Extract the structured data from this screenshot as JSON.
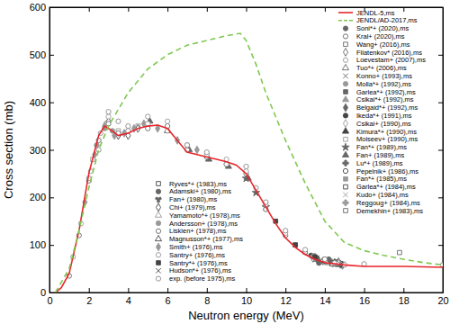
{
  "chart_data": {
    "type": "scatter",
    "xlabel": "Neutron energy (MeV)",
    "ylabel": "Cross section (mb)",
    "xlim": [
      0,
      20
    ],
    "ylim": [
      0,
      600
    ],
    "xticks": [
      0,
      2,
      4,
      6,
      8,
      10,
      12,
      14,
      16,
      18,
      20
    ],
    "yticks": [
      0,
      100,
      200,
      300,
      400,
      500,
      600
    ],
    "grid": false,
    "legend": "upper right",
    "series": [
      {
        "name": "JENDL-5,ms",
        "type": "line",
        "color": "#e8262b",
        "line_style": "solid",
        "x": [
          0.3,
          0.6,
          1,
          1.5,
          2,
          2.5,
          2.8,
          3,
          3.5,
          4,
          4.5,
          5,
          5.5,
          6,
          6.5,
          7,
          7.5,
          8,
          8.5,
          9,
          9.5,
          10,
          10.5,
          11,
          11.5,
          12,
          12.5,
          13,
          13.5,
          14,
          15,
          16,
          17,
          18,
          19,
          20
        ],
        "values": [
          0,
          10,
          40,
          130,
          250,
          330,
          350,
          345,
          330,
          335,
          345,
          350,
          352,
          345,
          320,
          295,
          290,
          285,
          280,
          275,
          268,
          250,
          215,
          180,
          145,
          115,
          95,
          80,
          70,
          63,
          58,
          55,
          55,
          55,
          54,
          53
        ]
      },
      {
        "name": "JENDL/AD-2017,ms",
        "type": "line",
        "color": "#7ec850",
        "line_style": "dashed",
        "x": [
          0.3,
          1,
          1.5,
          2,
          2.5,
          3,
          4,
          5,
          6,
          7,
          8,
          9,
          9.7,
          10,
          10.5,
          11,
          12,
          13,
          14,
          15,
          16,
          17,
          18,
          19,
          20
        ],
        "values": [
          0,
          50,
          130,
          220,
          300,
          350,
          420,
          470,
          500,
          520,
          530,
          540,
          545,
          530,
          480,
          420,
          320,
          230,
          150,
          105,
          88,
          78,
          70,
          63,
          58
        ]
      },
      {
        "name": "Soni*+ (2020),ms",
        "type": "scatter",
        "marker": "circle",
        "color": "#666666",
        "x": [
          13.7,
          14.3,
          14.8
        ],
        "values": [
          62,
          65,
          58
        ]
      },
      {
        "name": "Kral+ (2020),ms",
        "type": "scatter",
        "marker": "circle-open",
        "color": "#666666",
        "x": [
          13.9,
          14.6
        ],
        "values": [
          66,
          59
        ]
      },
      {
        "name": "Wang+ (2016),ms",
        "type": "scatter",
        "marker": "square-open",
        "color": "#666666",
        "x": [
          13.5,
          14.1,
          14.8
        ],
        "values": [
          70,
          63,
          60
        ]
      },
      {
        "name": "Filatenkov* (2016),ms",
        "type": "scatter",
        "marker": "diamond-open",
        "color": "#666666",
        "x": [
          13.4,
          13.9,
          14.4,
          14.9
        ],
        "values": [
          72,
          66,
          62,
          57
        ]
      },
      {
        "name": "Loevestam+ (2007),ms",
        "type": "scatter",
        "marker": "circle-open",
        "color": "#999999",
        "x": [
          1.2,
          1.6,
          2.1,
          2.6
        ],
        "values": [
          75,
          145,
          255,
          335
        ]
      },
      {
        "name": "Tuo*+ (2006),ms",
        "type": "scatter",
        "marker": "triangle-open",
        "color": "#666666",
        "x": [
          13.5,
          14.0,
          14.7
        ],
        "values": [
          75,
          65,
          62
        ]
      },
      {
        "name": "Konno+ (1993),ms",
        "type": "scatter",
        "marker": "times",
        "color": "#666666",
        "x": [
          13.6,
          14.2,
          14.9
        ],
        "values": [
          73,
          66,
          60
        ]
      },
      {
        "name": "Molla*+ (1992),ms",
        "type": "scatter",
        "marker": "circle",
        "color": "#999999",
        "x": [
          14.1,
          14.7
        ],
        "values": [
          68,
          62
        ]
      },
      {
        "name": "Garlea*+ (1992),ms",
        "type": "scatter",
        "marker": "square",
        "color": "#666666",
        "x": [
          14.6
        ],
        "values": [
          64
        ]
      },
      {
        "name": "Csikai*+ (1992),ms",
        "type": "scatter",
        "marker": "triangle",
        "color": "#999999",
        "x": [
          14.7
        ],
        "values": [
          66
        ]
      },
      {
        "name": "Belgaid*+ (1992),ms",
        "type": "scatter",
        "marker": "diamond",
        "color": "#666666",
        "x": [
          14.5,
          14.8
        ],
        "values": [
          63,
          59
        ]
      },
      {
        "name": "Ikeda*+ (1991),ms",
        "type": "scatter",
        "marker": "circle",
        "color": "#444444",
        "x": [
          13.3,
          13.6,
          14.1,
          14.6,
          14.9
        ],
        "values": [
          78,
          72,
          66,
          62,
          58
        ]
      },
      {
        "name": "Csikai+ (1990),ms",
        "type": "scatter",
        "marker": "diamond-open",
        "color": "#999999",
        "x": [
          14.4
        ],
        "values": [
          61
        ]
      },
      {
        "name": "Kimura*+ (1990),ms",
        "type": "scatter",
        "marker": "triangle",
        "color": "#444444",
        "x": [
          14.0,
          14.5
        ],
        "values": [
          67,
          62
        ]
      },
      {
        "name": "Moiseev+ (1990),ms",
        "type": "scatter",
        "marker": "square-open",
        "color": "#999999",
        "x": [
          2.2,
          2.9,
          3.5,
          4.5
        ],
        "values": [
          280,
          355,
          340,
          350
        ]
      },
      {
        "name": "Fan*+ (1989),ms",
        "type": "scatter",
        "marker": "star",
        "color": "#666666",
        "x": [
          10.0,
          10.5,
          11.0
        ],
        "values": [
          240,
          210,
          180
        ]
      },
      {
        "name": "Fan+ (1989),ms",
        "type": "scatter",
        "marker": "triangle",
        "color": "#666666",
        "x": [
          5.1,
          6.0,
          7.1,
          8.1,
          9.1,
          10.1
        ],
        "values": [
          360,
          340,
          300,
          280,
          265,
          240
        ]
      },
      {
        "name": "Lu*+ (1989),ms",
        "type": "scatter",
        "marker": "cross",
        "color": "#666666",
        "x": [
          13.6,
          14.3
        ],
        "values": [
          70,
          64
        ]
      },
      {
        "name": "Pepelnik+ (1986),ms",
        "type": "scatter",
        "marker": "circle-open",
        "color": "#444444",
        "x": [
          14.0,
          14.6
        ],
        "values": [
          70,
          63
        ]
      },
      {
        "name": "Fan*+ (1985),ms",
        "type": "scatter",
        "marker": "square",
        "color": "#999999",
        "x": [
          12.5,
          13.0
        ],
        "values": [
          100,
          85
        ]
      },
      {
        "name": "Garlea*+ (1984),ms",
        "type": "scatter",
        "marker": "square-open",
        "color": "#444444",
        "x": [
          14.8
        ],
        "values": [
          61
        ]
      },
      {
        "name": "Kudo+ (1984),ms",
        "type": "scatter",
        "marker": "times",
        "color": "#999999",
        "x": [
          14.2,
          14.7
        ],
        "values": [
          64,
          61
        ]
      },
      {
        "name": "Reggoug+ (1984),ms",
        "type": "scatter",
        "marker": "cross",
        "color": "#999999",
        "x": [
          13.4,
          14.1,
          14.7
        ],
        "values": [
          76,
          67,
          62
        ]
      },
      {
        "name": "Demekhin+ (1983),ms",
        "type": "scatter",
        "marker": "square-open",
        "color": "#666666",
        "x": [
          17.8
        ],
        "values": [
          84
        ]
      },
      {
        "name": "Ryves*+ (1983),ms",
        "type": "scatter",
        "marker": "square-open",
        "color": "#444444",
        "x": [
          14.1,
          14.7
        ],
        "values": [
          66,
          60
        ]
      },
      {
        "name": "Adamski+ (1980),ms",
        "type": "scatter",
        "marker": "circle",
        "color": "#666666",
        "x": [
          14.2
        ],
        "values": [
          70
        ]
      },
      {
        "name": "Fan+ (1980),ms",
        "type": "scatter",
        "marker": "wye",
        "color": "#666666",
        "x": [
          14.6
        ],
        "values": [
          65
        ]
      },
      {
        "name": "Chi+ (1979),ms",
        "type": "scatter",
        "marker": "diamond-open",
        "color": "#444444",
        "x": [
          3.0,
          3.5,
          4.0,
          4.5
        ],
        "values": [
          360,
          330,
          330,
          345
        ]
      },
      {
        "name": "Yamamoto*+ (1978),ms",
        "type": "scatter",
        "marker": "triangle-open",
        "color": "#999999",
        "x": [
          14.7
        ],
        "values": [
          62
        ]
      },
      {
        "name": "Andersson+ (1978),ms",
        "type": "scatter",
        "marker": "circle",
        "color": "#999999",
        "x": [
          2.4,
          2.8,
          3.2
        ],
        "values": [
          310,
          345,
          340
        ]
      },
      {
        "name": "Liskien+ (1978),ms",
        "type": "scatter",
        "marker": "circle-open",
        "color": "#666666",
        "x": [
          1.0,
          1.5,
          2.0,
          2.5,
          3.0,
          3.5,
          4.0,
          5.0,
          6.0,
          7.0,
          8.0,
          9.0,
          10.0,
          11.0,
          12.0,
          13.0
        ],
        "values": [
          35,
          120,
          235,
          320,
          355,
          335,
          340,
          345,
          350,
          300,
          285,
          270,
          250,
          175,
          120,
          85
        ]
      },
      {
        "name": "Magnusson*+ (1977),ms",
        "type": "scatter",
        "marker": "triangle-open",
        "color": "#444444",
        "x": [
          14.4
        ],
        "values": [
          60
        ]
      },
      {
        "name": "Smith+ (1976),ms",
        "type": "scatter",
        "marker": "diamond",
        "color": "#999999",
        "x": [
          1.8,
          2.3,
          2.8,
          3.3,
          3.8,
          4.3,
          4.8,
          5.5,
          6.5,
          7.5
        ],
        "values": [
          190,
          290,
          350,
          330,
          335,
          345,
          355,
          345,
          320,
          300
        ]
      },
      {
        "name": "Santry+ (1976),ms",
        "type": "scatter",
        "marker": "circle-open",
        "color": "#999999",
        "x": [
          3.0,
          4.0,
          5.0,
          6.0,
          7.0,
          8.0,
          9.0,
          10.0,
          11.0,
          12.0
        ],
        "values": [
          370,
          340,
          355,
          360,
          310,
          290,
          280,
          255,
          185,
          125
        ]
      },
      {
        "name": "Santry*+ (1976),ms",
        "type": "scatter",
        "marker": "square",
        "color": "#444444",
        "x": [
          11.5,
          12.5,
          13.5
        ],
        "values": [
          150,
          100,
          75
        ]
      },
      {
        "name": "Hudson*+ (1976),ms",
        "type": "scatter",
        "marker": "times",
        "color": "#444444",
        "x": [
          14.8
        ],
        "values": [
          60
        ]
      },
      {
        "name": "exp. (before 1975),ms",
        "type": "scatter",
        "marker": "circle-open",
        "color": "#888888",
        "x": [
          2.0,
          2.5,
          3.0,
          3.5,
          4.0,
          5.0,
          6.0,
          7.0,
          8.0,
          9.0,
          10.0,
          10.5,
          11.0,
          12.0,
          13.0,
          14.0,
          14.5,
          15.0,
          16.0,
          20.0
        ],
        "values": [
          240,
          300,
          380,
          360,
          350,
          370,
          340,
          310,
          295,
          270,
          265,
          220,
          190,
          130,
          90,
          70,
          62,
          58,
          60,
          58
        ]
      }
    ]
  }
}
